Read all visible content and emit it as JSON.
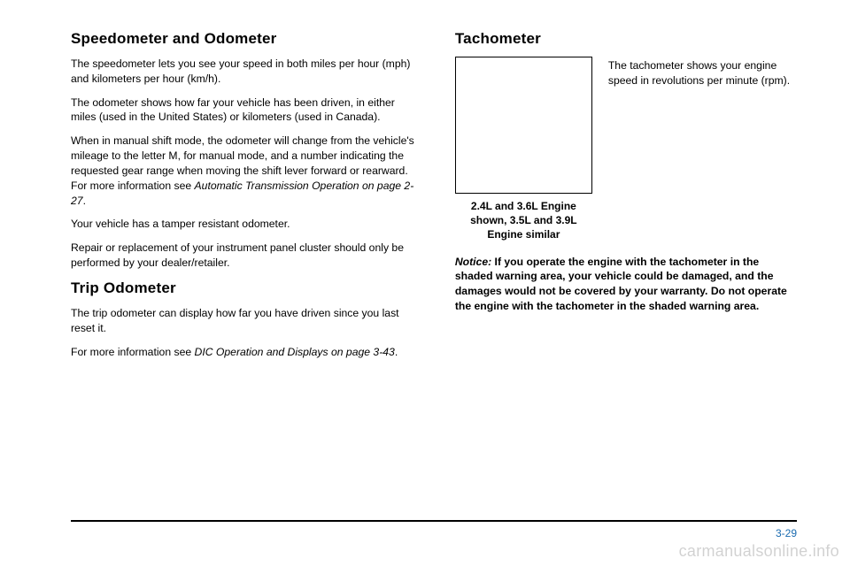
{
  "left": {
    "h1": "Speedometer and Odometer",
    "p1": "The speedometer lets you see your speed in both miles per hour (mph) and kilometers per hour (km/h).",
    "p2": "The odometer shows how far your vehicle has been driven, in either miles (used in the United States) or kilometers (used in Canada).",
    "p3a": "When in manual shift mode, the odometer will change from the vehicle's mileage to the letter M, for manual mode, and a number indicating the requested gear range when moving the shift lever forward or rearward. For more information see ",
    "p3i": "Automatic Transmission Operation on page 2-27",
    "p3b": ".",
    "p4": "Your vehicle has a tamper resistant odometer.",
    "p5": "Repair or replacement of your instrument panel cluster should only be performed by your dealer/retailer.",
    "h2": "Trip Odometer",
    "p6": "The trip odometer can display how far you have driven since you last reset it.",
    "p7a": "For more information see ",
    "p7i": "DIC Operation and Displays on page 3-43",
    "p7b": "."
  },
  "right": {
    "h1": "Tachometer",
    "desc": "The tachometer shows your engine speed in revolutions per minute (rpm).",
    "caption": "2.4L and 3.6L Engine shown, 3.5L and 3.9L Engine similar",
    "notice_label": "Notice:",
    "notice_body": " If you operate the engine with the tachometer in the shaded warning area, your vehicle could be damaged, and the damages would not be covered by your warranty. Do not operate the engine with the tachometer in the shaded warning area."
  },
  "pagenum": "3-29",
  "watermark": "carmanualsonline.info",
  "colors": {
    "text": "#000000",
    "pagenum": "#1a6bb0",
    "watermark": "rgba(0,0,0,0.18)",
    "bg": "#ffffff"
  }
}
